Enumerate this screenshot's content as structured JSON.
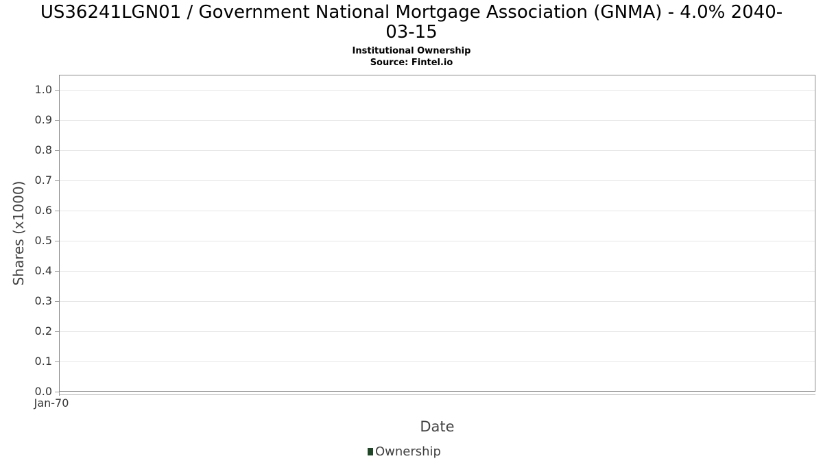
{
  "chart_data": {
    "type": "line",
    "title": "US36241LGN01 / Government National Mortgage Association (GNMA) - 4.0% 2040-03-15",
    "title_lines": [
      "US36241LGN01 / Government National Mortgage Association (GNMA) - 4.0% 2040-",
      "03-15"
    ],
    "subtitle": "Institutional Ownership",
    "source": "Source: Fintel.io",
    "xlabel": "Date",
    "ylabel": "Shares (x1000)",
    "ylim": [
      0,
      1.05
    ],
    "yticks": [
      0.0,
      0.1,
      0.2,
      0.3,
      0.4,
      0.5,
      0.6,
      0.7,
      0.8,
      0.9,
      1.0
    ],
    "ytick_labels": [
      "0.0",
      "0.1",
      "0.2",
      "0.3",
      "0.4",
      "0.5",
      "0.6",
      "0.7",
      "0.8",
      "0.9",
      "1.0"
    ],
    "xticks": [
      "Jan-70"
    ],
    "grid": "horizontal",
    "legend_position": "bottom",
    "series": [
      {
        "name": "Ownership",
        "color": "#1e4627",
        "x": [],
        "values": []
      }
    ],
    "colors": {
      "plot_border": "#898989",
      "gridline": "#e6e6e6",
      "tick": "#9a9a9a",
      "tick_label": "#333333",
      "axis_title": "#444444",
      "legend_marker": "#1e4627"
    }
  }
}
